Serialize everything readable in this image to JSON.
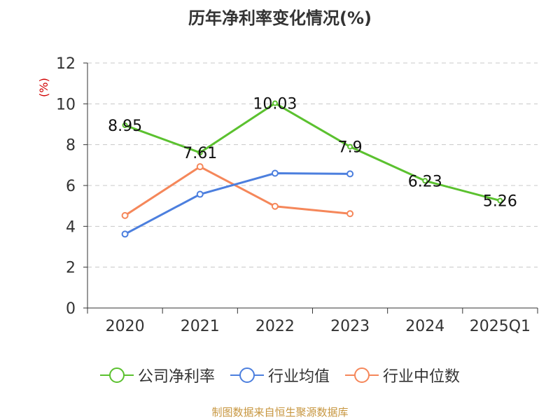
{
  "title": "历年净利率变化情况(%)",
  "source": "制图数据来自恒生聚源数据库",
  "colors": {
    "company": "#5bc12f",
    "industry_avg": "#4c7fde",
    "industry_median": "#f5875a",
    "source_text": "#c7963f",
    "ylabel": "#d10000"
  },
  "chart_data": {
    "type": "line",
    "title": "历年净利率变化情况(%)",
    "ylabel": "(%)",
    "xlabel": "",
    "categories": [
      "2020",
      "2021",
      "2022",
      "2023",
      "2024",
      "2025Q1"
    ],
    "ylim": [
      0,
      12
    ],
    "yticks": [
      0,
      2,
      4,
      6,
      8,
      10,
      12
    ],
    "grid": true,
    "legend_position": "bottom",
    "series": [
      {
        "name": "公司净利率",
        "color_key": "company",
        "values": [
          8.95,
          7.61,
          10.03,
          7.9,
          6.23,
          5.26
        ],
        "labels": [
          "8.95",
          "7.61",
          "10.03",
          "7.9",
          "6.23",
          "5.26"
        ]
      },
      {
        "name": "行业均值",
        "color_key": "industry_avg",
        "values": [
          3.62,
          5.57,
          6.6,
          6.57,
          null,
          null
        ]
      },
      {
        "name": "行业中位数",
        "color_key": "industry_median",
        "values": [
          4.53,
          6.92,
          4.98,
          4.62,
          null,
          null
        ]
      }
    ]
  }
}
